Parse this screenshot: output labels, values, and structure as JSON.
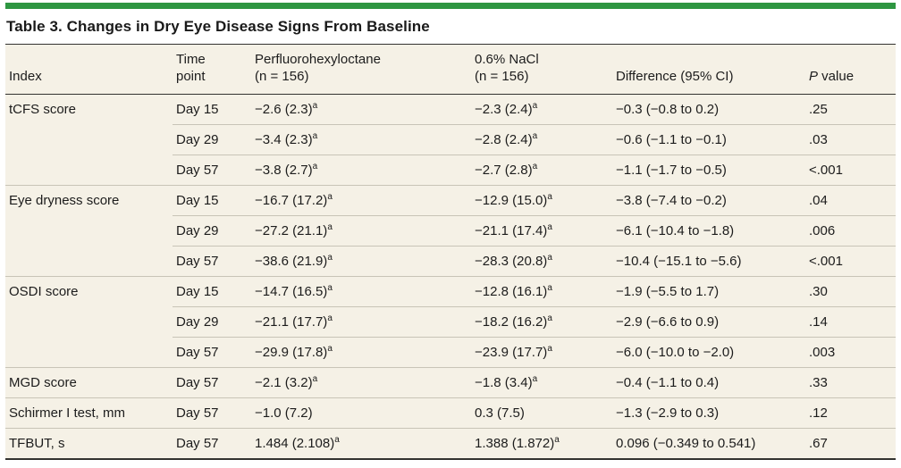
{
  "colors": {
    "accent_bar_green": "#2e9641",
    "table_background": "#f5f1e6",
    "dark_rule": "#333330",
    "light_rule": "#c8c4b7",
    "text": "#1c1c1c"
  },
  "title": "Table 3. Changes in Dry Eye Disease Signs From Baseline",
  "table": {
    "header": {
      "index": "Index",
      "time_point_line1": "Time",
      "time_point_line2": "point",
      "pfho_line1": "Perfluorohexyloctane",
      "pfho_line2": "(n = 156)",
      "nacl_line1": "0.6% NaCl",
      "nacl_line2": "(n = 156)",
      "difference": "Difference (95% CI)",
      "p_value_italic": "P",
      "p_value_rest": " value"
    },
    "rows": [
      {
        "index": "tCFS score",
        "group_start": true,
        "time": "Day 15",
        "pfho": "−2.6 (2.3)",
        "pfho_sup": "a",
        "nacl": "−2.3 (2.4)",
        "nacl_sup": "a",
        "difference": "−0.3 (−0.8 to 0.2)",
        "p": ".25"
      },
      {
        "index": "",
        "group_start": false,
        "time": "Day 29",
        "pfho": "−3.4 (2.3)",
        "pfho_sup": "a",
        "nacl": "−2.8 (2.4)",
        "nacl_sup": "a",
        "difference": "−0.6 (−1.1 to −0.1)",
        "p": ".03"
      },
      {
        "index": "",
        "group_start": false,
        "time": "Day 57",
        "pfho": "−3.8 (2.7)",
        "pfho_sup": "a",
        "nacl": "−2.7 (2.8)",
        "nacl_sup": "a",
        "difference": "−1.1 (−1.7 to −0.5)",
        "p": "<.001"
      },
      {
        "index": "Eye dryness score",
        "group_start": true,
        "time": "Day 15",
        "pfho": "−16.7 (17.2)",
        "pfho_sup": "a",
        "nacl": "−12.9 (15.0)",
        "nacl_sup": "a",
        "difference": "−3.8 (−7.4 to −0.2)",
        "p": ".04"
      },
      {
        "index": "",
        "group_start": false,
        "time": "Day 29",
        "pfho": "−27.2 (21.1)",
        "pfho_sup": "a",
        "nacl": "−21.1 (17.4)",
        "nacl_sup": "a",
        "difference": "−6.1 (−10.4 to −1.8)",
        "p": ".006"
      },
      {
        "index": "",
        "group_start": false,
        "time": "Day 57",
        "pfho": "−38.6 (21.9)",
        "pfho_sup": "a",
        "nacl": "−28.3 (20.8)",
        "nacl_sup": "a",
        "difference": "−10.4 (−15.1 to −5.6)",
        "p": "<.001"
      },
      {
        "index": "OSDI score",
        "group_start": true,
        "time": "Day 15",
        "pfho": "−14.7 (16.5)",
        "pfho_sup": "a",
        "nacl": "−12.8 (16.1)",
        "nacl_sup": "a",
        "difference": "−1.9 (−5.5 to 1.7)",
        "p": ".30"
      },
      {
        "index": "",
        "group_start": false,
        "time": "Day 29",
        "pfho": "−21.1 (17.7)",
        "pfho_sup": "a",
        "nacl": "−18.2 (16.2)",
        "nacl_sup": "a",
        "difference": "−2.9 (−6.6 to 0.9)",
        "p": ".14"
      },
      {
        "index": "",
        "group_start": false,
        "time": "Day 57",
        "pfho": "−29.9 (17.8)",
        "pfho_sup": "a",
        "nacl": "−23.9 (17.7)",
        "nacl_sup": "a",
        "difference": "−6.0 (−10.0 to −2.0)",
        "p": ".003"
      },
      {
        "index": "MGD score",
        "group_start": true,
        "time": "Day 57",
        "pfho": "−2.1 (3.2)",
        "pfho_sup": "a",
        "nacl": "−1.8 (3.4)",
        "nacl_sup": "a",
        "difference": "−0.4 (−1.1 to 0.4)",
        "p": ".33"
      },
      {
        "index": "Schirmer I test, mm",
        "group_start": true,
        "time": "Day 57",
        "pfho": "−1.0 (7.2)",
        "pfho_sup": "",
        "nacl": "0.3 (7.5)",
        "nacl_sup": "",
        "difference": "−1.3 (−2.9 to 0.3)",
        "p": ".12"
      },
      {
        "index": "TFBUT, s",
        "group_start": true,
        "time": "Day 57",
        "pfho": "1.484 (2.108)",
        "pfho_sup": "a",
        "nacl": "1.388 (1.872)",
        "nacl_sup": "a",
        "difference": "0.096 (−0.349 to 0.541)",
        "p": ".67"
      }
    ]
  }
}
